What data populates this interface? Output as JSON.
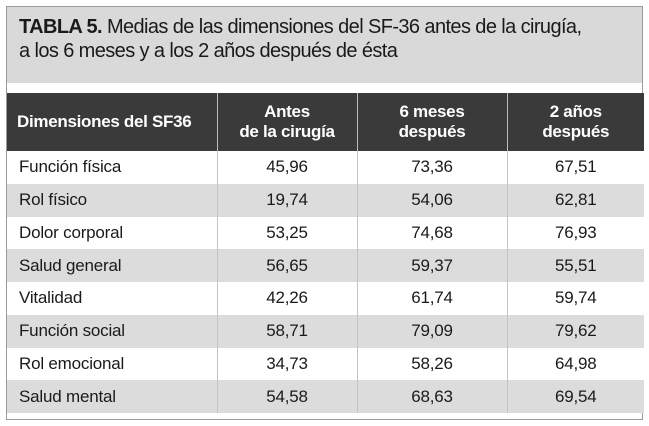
{
  "caption": {
    "label": "TABLA 5.",
    "text_line1": "Medias de las dimensiones del SF-36 antes de la cirugía,",
    "text_line2": "a los 6 meses y a los 2 años después de ésta"
  },
  "table": {
    "headers": [
      [
        "Dimensiones del SF36"
      ],
      [
        "Antes",
        "de la cirugía"
      ],
      [
        "6 meses",
        "después"
      ],
      [
        "2 años",
        "después"
      ]
    ],
    "rows": [
      [
        "Función física",
        "45,96",
        "73,36",
        "67,51"
      ],
      [
        "Rol físico",
        "19,74",
        "54,06",
        "62,81"
      ],
      [
        "Dolor corporal",
        "53,25",
        "74,68",
        "76,93"
      ],
      [
        "Salud general",
        "56,65",
        "59,37",
        "55,51"
      ],
      [
        "Vitalidad",
        "42,26",
        "61,74",
        "59,74"
      ],
      [
        "Función social",
        "58,71",
        "79,09",
        "79,62"
      ],
      [
        "Rol emocional",
        "34,73",
        "58,26",
        "64,98"
      ],
      [
        "Salud mental",
        "54,58",
        "68,63",
        "69,54"
      ]
    ]
  },
  "colors": {
    "caption_background": "#d9d9d9",
    "header_background": "#3a3a3a",
    "header_text": "#ffffff",
    "row_alternate": "#dcdcdc",
    "border": "#9a9a9a"
  }
}
